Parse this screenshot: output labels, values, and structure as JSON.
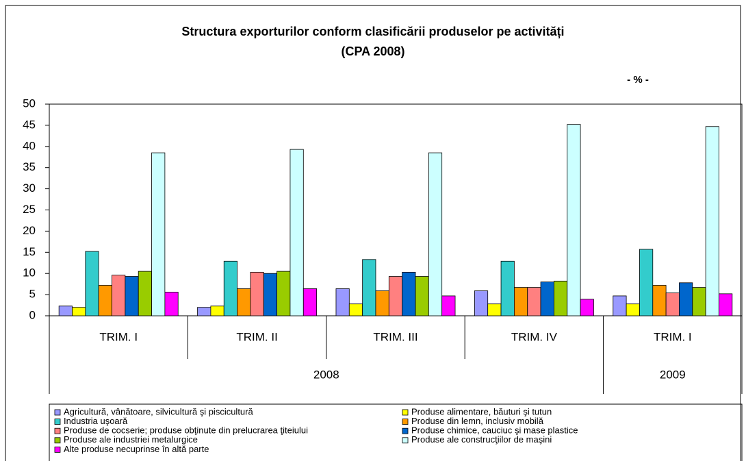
{
  "chart_data": {
    "type": "bar",
    "title": "Structura exporturilor conform clasificării produselor pe activități",
    "subtitle": "(CPA 2008)",
    "annotation": "- % -",
    "categories": [
      "TRIM. I",
      "TRIM. II",
      "TRIM. III",
      "TRIM. IV",
      "TRIM. I"
    ],
    "category_groups": [
      {
        "label": "2008",
        "count": 4
      },
      {
        "label": "2009",
        "count": 1
      }
    ],
    "series": [
      {
        "name": "Agricultură, vânătoare, silvicultură şi piscicultură",
        "color": "#9999ff",
        "values": [
          2.3,
          2.0,
          6.4,
          5.9,
          4.7
        ]
      },
      {
        "name": "Produse alimentare, băuturi şi tutun",
        "color": "#ffff00",
        "values": [
          2.0,
          2.3,
          2.8,
          2.8,
          2.8
        ]
      },
      {
        "name": "Industria uşoară",
        "color": "#33cccc",
        "values": [
          15.2,
          12.9,
          13.3,
          12.9,
          15.7
        ]
      },
      {
        "name": "Produse din lemn, inclusiv mobilă",
        "color": "#ff9900",
        "values": [
          7.2,
          6.4,
          5.9,
          6.7,
          7.2
        ]
      },
      {
        "name": "Produse de cocserie; produse obţinute din prelucrarea ţiteiului",
        "color": "#ff8080",
        "values": [
          9.6,
          10.3,
          9.3,
          6.7,
          5.4
        ]
      },
      {
        "name": "Produse chimice, cauciuc şi mase plastice",
        "color": "#0066cc",
        "values": [
          9.3,
          10.0,
          10.3,
          8.0,
          7.8
        ]
      },
      {
        "name": "Produse ale industriei metalurgice",
        "color": "#99cc00",
        "values": [
          10.5,
          10.5,
          9.3,
          8.2,
          6.7
        ]
      },
      {
        "name": "Produse ale construcţiilor de maşini",
        "color": "#ccffff",
        "values": [
          38.5,
          39.3,
          38.5,
          45.2,
          44.7
        ]
      },
      {
        "name": "Alte produse necuprinse în altă parte",
        "color": "#ff00ff",
        "values": [
          5.6,
          6.4,
          4.7,
          3.9,
          5.2
        ]
      }
    ],
    "ylim": [
      0,
      50
    ],
    "yticks": [
      0,
      5,
      10,
      15,
      20,
      25,
      30,
      35,
      40,
      45,
      50
    ],
    "grid": false,
    "legend": "bottom"
  }
}
